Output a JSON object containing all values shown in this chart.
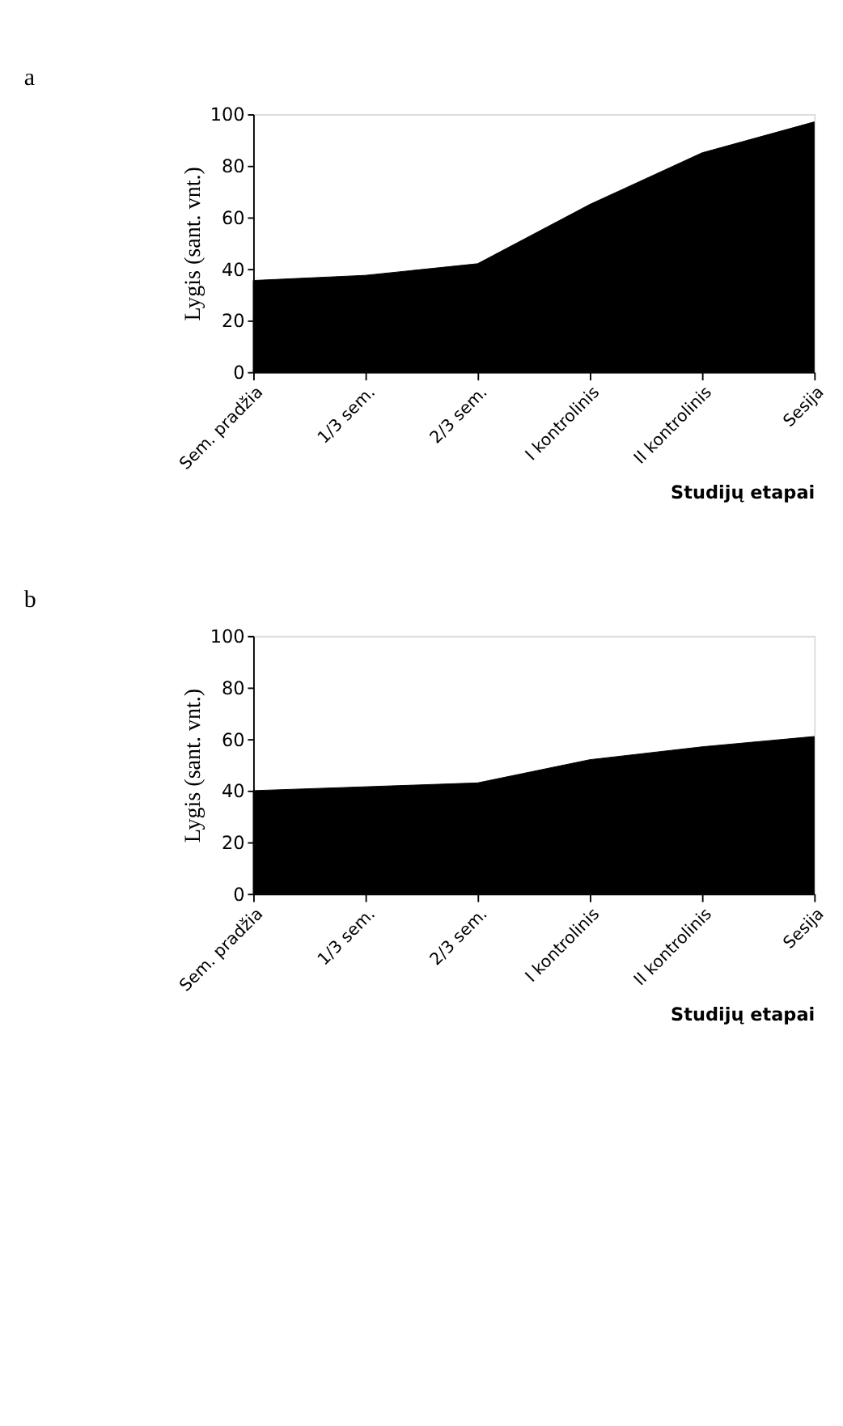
{
  "chart_data": [
    {
      "type": "area",
      "title": "a",
      "categories": [
        "Sem. pradžia",
        "1/3 sem.",
        "2/3 sem.",
        "I kontrolinis",
        "II kontrolinis",
        "Sesija"
      ],
      "values": [
        35.5,
        37.5,
        42,
        65,
        85,
        97
      ],
      "color": "#000000",
      "ylim": [
        0,
        100
      ],
      "yticks": [
        0,
        20,
        40,
        60,
        80,
        100
      ],
      "xlabel": "Studijų etapai",
      "ylabel": "Lygis (sant. vnt.)",
      "grid": false
    },
    {
      "type": "area",
      "title": "b",
      "categories": [
        "Sem. pradžia",
        "1/3 sem.",
        "2/3 sem.",
        "I kontrolinis",
        "II kontrolinis",
        "Sesija"
      ],
      "values": [
        40,
        41.5,
        43,
        52,
        57,
        61
      ],
      "color": "#000000",
      "ylim": [
        0,
        100
      ],
      "yticks": [
        0,
        20,
        40,
        60,
        80,
        100
      ],
      "xlabel": "Studijų etapai",
      "ylabel": "Lygis (sant. vnt.)",
      "grid": false
    }
  ]
}
